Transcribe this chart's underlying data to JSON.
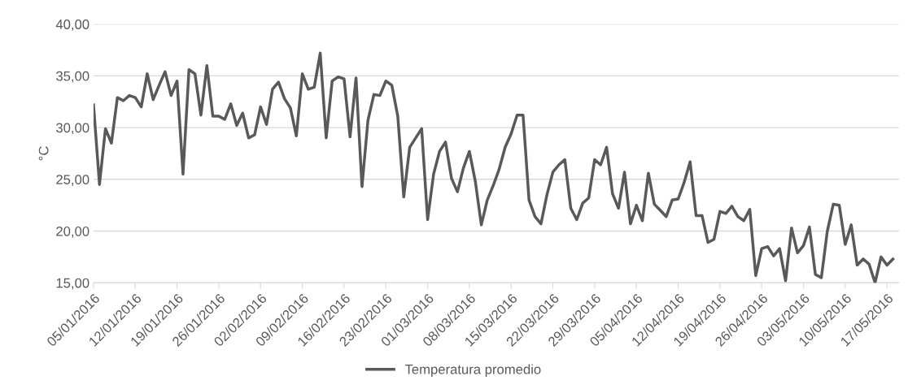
{
  "chart_data": {
    "type": "line",
    "ylabel": "°C",
    "x": [
      "2016-01-05",
      "2016-01-06",
      "2016-01-07",
      "2016-01-08",
      "2016-01-09",
      "2016-01-10",
      "2016-01-11",
      "2016-01-12",
      "2016-01-13",
      "2016-01-14",
      "2016-01-15",
      "2016-01-16",
      "2016-01-17",
      "2016-01-18",
      "2016-01-19",
      "2016-01-20",
      "2016-01-21",
      "2016-01-22",
      "2016-01-23",
      "2016-01-24",
      "2016-01-25",
      "2016-01-26",
      "2016-01-27",
      "2016-01-28",
      "2016-01-29",
      "2016-01-30",
      "2016-01-31",
      "2016-02-01",
      "2016-02-02",
      "2016-02-03",
      "2016-02-04",
      "2016-02-05",
      "2016-02-06",
      "2016-02-07",
      "2016-02-08",
      "2016-02-09",
      "2016-02-10",
      "2016-02-11",
      "2016-02-12",
      "2016-02-13",
      "2016-02-14",
      "2016-02-15",
      "2016-02-16",
      "2016-02-17",
      "2016-02-18",
      "2016-02-19",
      "2016-02-20",
      "2016-02-21",
      "2016-02-22",
      "2016-02-23",
      "2016-02-24",
      "2016-02-25",
      "2016-02-26",
      "2016-02-27",
      "2016-02-28",
      "2016-02-29",
      "2016-03-01",
      "2016-03-02",
      "2016-03-03",
      "2016-03-04",
      "2016-03-05",
      "2016-03-06",
      "2016-03-07",
      "2016-03-08",
      "2016-03-09",
      "2016-03-10",
      "2016-03-11",
      "2016-03-12",
      "2016-03-13",
      "2016-03-14",
      "2016-03-15",
      "2016-03-16",
      "2016-03-17",
      "2016-03-18",
      "2016-03-19",
      "2016-03-20",
      "2016-03-21",
      "2016-03-22",
      "2016-03-23",
      "2016-03-24",
      "2016-03-25",
      "2016-03-26",
      "2016-03-27",
      "2016-03-28",
      "2016-03-29",
      "2016-03-30",
      "2016-03-31",
      "2016-04-01",
      "2016-04-02",
      "2016-04-03",
      "2016-04-04",
      "2016-04-05",
      "2016-04-06",
      "2016-04-07",
      "2016-04-08",
      "2016-04-09",
      "2016-04-10",
      "2016-04-11",
      "2016-04-12",
      "2016-04-13",
      "2016-04-14",
      "2016-04-15",
      "2016-04-16",
      "2016-04-17",
      "2016-04-18",
      "2016-04-19",
      "2016-04-20",
      "2016-04-21",
      "2016-04-22",
      "2016-04-23",
      "2016-04-24",
      "2016-04-25",
      "2016-04-26",
      "2016-04-27",
      "2016-04-28",
      "2016-04-29",
      "2016-04-30",
      "2016-05-01",
      "2016-05-02",
      "2016-05-03",
      "2016-05-04",
      "2016-05-05",
      "2016-05-06",
      "2016-05-07",
      "2016-05-08",
      "2016-05-09",
      "2016-05-10",
      "2016-05-11",
      "2016-05-12",
      "2016-05-13",
      "2016-05-14",
      "2016-05-15",
      "2016-05-16",
      "2016-05-17",
      "2016-05-18"
    ],
    "series": [
      {
        "name": "Temperatura promedio",
        "color": "#595959",
        "values": [
          32.2,
          24.5,
          29.9,
          28.5,
          32.9,
          32.6,
          33.1,
          32.9,
          32.0,
          35.2,
          32.7,
          34.1,
          35.4,
          33.1,
          34.5,
          25.5,
          35.6,
          35.2,
          31.2,
          36.0,
          31.1,
          31.1,
          30.8,
          32.3,
          30.2,
          31.4,
          29.0,
          29.3,
          32.0,
          30.3,
          33.7,
          34.4,
          32.8,
          31.9,
          29.2,
          35.2,
          33.7,
          33.9,
          37.2,
          29.0,
          34.5,
          34.9,
          34.7,
          29.1,
          34.8,
          24.3,
          30.7,
          33.2,
          33.1,
          34.5,
          34.1,
          31.1,
          23.3,
          28.1,
          29.0,
          29.9,
          21.1,
          25.5,
          27.7,
          28.6,
          25.1,
          23.8,
          26.1,
          27.7,
          24.8,
          20.6,
          23.0,
          24.4,
          26.0,
          28.1,
          29.4,
          31.2,
          31.2,
          23.0,
          21.4,
          20.7,
          23.5,
          25.7,
          26.4,
          26.9,
          22.2,
          21.1,
          22.7,
          23.2,
          26.9,
          26.4,
          28.1,
          23.6,
          22.2,
          25.7,
          20.7,
          22.5,
          21.0,
          25.6,
          22.6,
          22.0,
          21.4,
          23.0,
          23.1,
          24.7,
          26.7,
          21.5,
          21.5,
          18.9,
          19.2,
          21.9,
          21.7,
          22.4,
          21.4,
          21.0,
          22.1,
          15.7,
          18.3,
          18.5,
          17.6,
          18.3,
          15.2,
          20.3,
          17.9,
          18.6,
          20.4,
          15.8,
          15.5,
          20.0,
          22.6,
          22.5,
          18.7,
          20.6,
          16.7,
          17.3,
          16.8,
          15.0,
          17.5,
          16.7,
          17.3
        ]
      }
    ],
    "xlim": [
      "2016-01-05",
      "2016-05-19"
    ],
    "xticks": [
      {
        "value": "2016-01-05",
        "label": "05/01/2016"
      },
      {
        "value": "2016-01-12",
        "label": "12/01/2016"
      },
      {
        "value": "2016-01-19",
        "label": "19/01/2016"
      },
      {
        "value": "2016-01-26",
        "label": "26/01/2016"
      },
      {
        "value": "2016-02-02",
        "label": "02/02/2016"
      },
      {
        "value": "2016-02-09",
        "label": "09/02/2016"
      },
      {
        "value": "2016-02-16",
        "label": "16/02/2016"
      },
      {
        "value": "2016-02-23",
        "label": "23/02/2016"
      },
      {
        "value": "2016-03-01",
        "label": "01/03/2016"
      },
      {
        "value": "2016-03-08",
        "label": "08/03/2016"
      },
      {
        "value": "2016-03-15",
        "label": "15/03/2016"
      },
      {
        "value": "2016-03-22",
        "label": "22/03/2016"
      },
      {
        "value": "2016-03-29",
        "label": "29/03/2016"
      },
      {
        "value": "2016-04-05",
        "label": "05/04/2016"
      },
      {
        "value": "2016-04-12",
        "label": "12/04/2016"
      },
      {
        "value": "2016-04-19",
        "label": "19/04/2016"
      },
      {
        "value": "2016-04-26",
        "label": "26/04/2016"
      },
      {
        "value": "2016-05-03",
        "label": "03/05/2016"
      },
      {
        "value": "2016-05-10",
        "label": "10/05/2016"
      },
      {
        "value": "2016-05-17",
        "label": "17/05/2016"
      }
    ],
    "ylim": [
      15,
      40
    ],
    "yticks": [
      {
        "value": 15,
        "label": "15,00"
      },
      {
        "value": 20,
        "label": "20,00"
      },
      {
        "value": 25,
        "label": "25,00"
      },
      {
        "value": 30,
        "label": "30,00"
      },
      {
        "value": 35,
        "label": "35,00"
      },
      {
        "value": 40,
        "label": "40,00"
      }
    ],
    "grid": "y",
    "legend": "bottom",
    "marker": "none",
    "line_style": "solid"
  }
}
